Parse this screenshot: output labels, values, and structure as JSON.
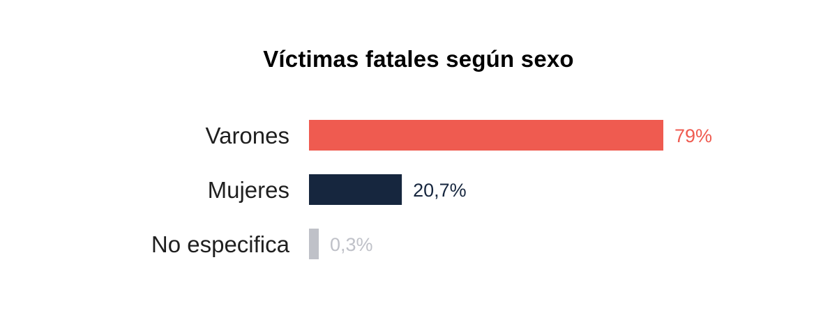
{
  "chart_data": {
    "type": "bar",
    "orientation": "horizontal",
    "title": "Víctimas fatales según sexo",
    "categories": [
      "Varones",
      "Mujeres",
      "No especifica"
    ],
    "values": [
      79,
      20.7,
      0.3
    ],
    "value_labels": [
      "79%",
      "20,7%",
      "0,3%"
    ],
    "colors": [
      "#ef5b50",
      "#16263e",
      "#bfc1c8"
    ],
    "xlim": [
      0,
      100
    ],
    "grid": false,
    "legend": "none"
  }
}
